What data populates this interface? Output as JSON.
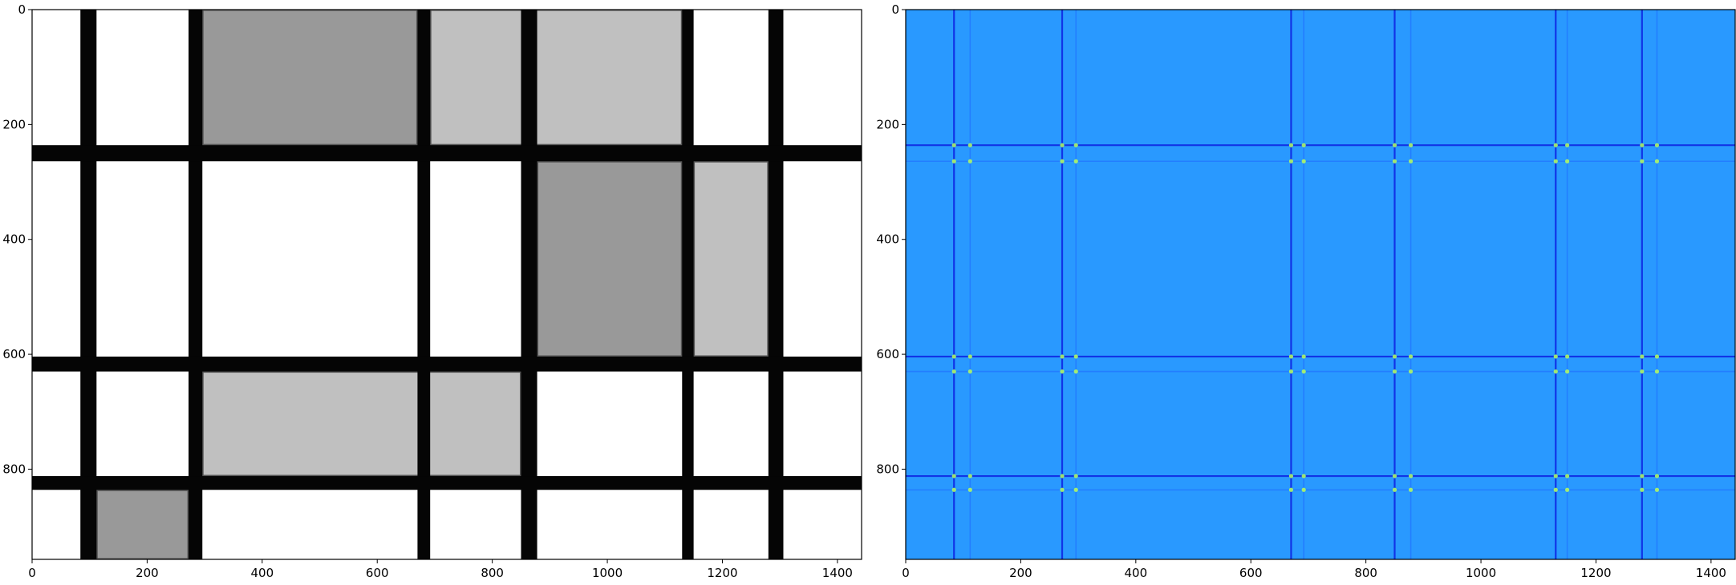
{
  "figure": {
    "panels": [
      {
        "id": "left",
        "description_kind": "image-grayscale",
        "x_ticks": [
          "0",
          "200",
          "400",
          "600",
          "800",
          "1000",
          "1200",
          "1400"
        ],
        "y_ticks": [
          "0",
          "200",
          "400",
          "600",
          "800"
        ],
        "xlim": [
          0,
          1442
        ],
        "ylim": [
          0,
          957
        ],
        "bars": [
          {
            "axis": "v",
            "from": 84,
            "to": 112
          },
          {
            "axis": "v",
            "from": 272,
            "to": 296
          },
          {
            "axis": "v",
            "from": 670,
            "to": 692
          },
          {
            "axis": "v",
            "from": 850,
            "to": 878
          },
          {
            "axis": "v",
            "from": 1130,
            "to": 1150
          },
          {
            "axis": "v",
            "from": 1280,
            "to": 1306
          },
          {
            "axis": "h",
            "from": 236,
            "to": 264
          },
          {
            "axis": "h",
            "from": 604,
            "to": 630
          },
          {
            "axis": "h",
            "from": 812,
            "to": 836
          }
        ],
        "cells": [
          {
            "x0": 296,
            "y0": 0,
            "x1": 670,
            "y1": 236,
            "shade": "#999999"
          },
          {
            "x0": 692,
            "y0": 0,
            "x1": 1130,
            "y1": 236,
            "shade": "#c0c0c0"
          },
          {
            "x0": 878,
            "y0": 264,
            "x1": 1130,
            "y1": 604,
            "shade": "#999999"
          },
          {
            "x0": 1150,
            "y0": 264,
            "x1": 1280,
            "y1": 604,
            "shade": "#c0c0c0"
          },
          {
            "x0": 296,
            "y0": 630,
            "x1": 850,
            "y1": 812,
            "shade": "#c0c0c0"
          },
          {
            "x0": 112,
            "y0": 836,
            "x1": 272,
            "y1": 957,
            "shade": "#999999"
          }
        ]
      },
      {
        "id": "right",
        "description_kind": "edge-response-heatmap",
        "x_ticks": [
          "0",
          "200",
          "400",
          "600",
          "800",
          "1000",
          "1200",
          "1400"
        ],
        "y_ticks": [
          "0",
          "200",
          "400",
          "600",
          "800"
        ],
        "xlim": [
          0,
          1442
        ],
        "ylim": [
          0,
          957
        ],
        "background_color": "#2999ff",
        "edge_color": "#0b1ae0",
        "faint_edge_color": "#1f6dff",
        "peak_color": "#b8ff5a",
        "v_edges": [
          84,
          112,
          272,
          296,
          670,
          692,
          850,
          878,
          1130,
          1150,
          1280,
          1306
        ],
        "h_edges": [
          236,
          264,
          604,
          630,
          812,
          836
        ]
      }
    ]
  }
}
